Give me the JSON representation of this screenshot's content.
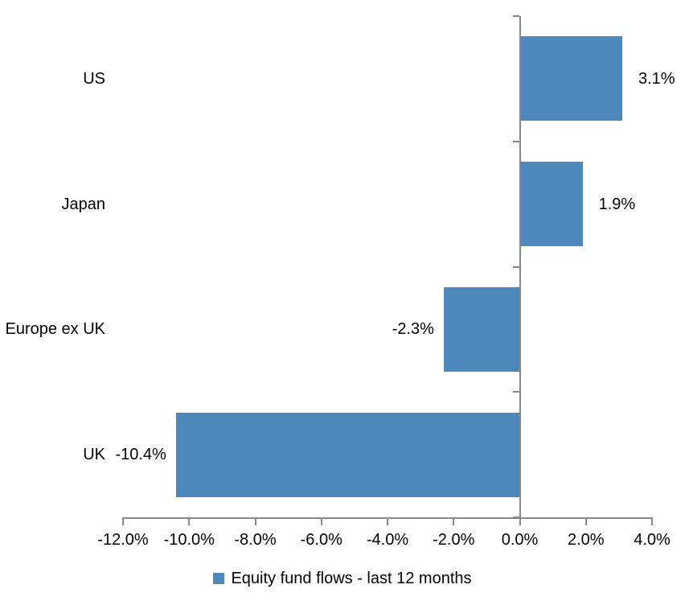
{
  "chart_data": {
    "type": "bar",
    "orientation": "horizontal",
    "title": "",
    "categories": [
      "US",
      "Japan",
      "Europe ex UK",
      "UK"
    ],
    "values": [
      3.1,
      1.9,
      -2.3,
      -10.4
    ],
    "value_labels": [
      "3.1%",
      "1.9%",
      "-2.3%",
      "-10.4%"
    ],
    "series": [
      {
        "name": "Equity fund flows - last 12 months",
        "values": [
          3.1,
          1.9,
          -2.3,
          -10.4
        ]
      }
    ],
    "xlim": [
      -12,
      4
    ],
    "x_tick_values": [
      -12,
      -10,
      -8,
      -6,
      -4,
      -2,
      0,
      2,
      4
    ],
    "x_tick_labels": [
      "-12.0%",
      "-10.0%",
      "-8.0%",
      "-6.0%",
      "-4.0%",
      "-2.0%",
      "0.0%",
      "2.0%",
      "4.0%"
    ],
    "grid": false,
    "legend": {
      "position": "bottom",
      "label": "Equity fund flows - last 12 months"
    },
    "colors": {
      "bar": "#4E87BB",
      "axis": "#888888",
      "text": "#000000",
      "background": "#FFFFFF"
    }
  }
}
